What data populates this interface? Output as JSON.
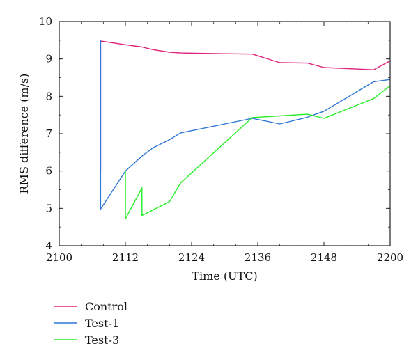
{
  "chart_data": {
    "type": "line",
    "xlabel": "Time (UTC)",
    "ylabel": "RMS difference (m/s)",
    "xlim": [
      2100,
      2200
    ],
    "ylim": [
      4,
      10
    ],
    "xticks": [
      "2100",
      "2112",
      "2124",
      "2136",
      "2148",
      "2200"
    ],
    "yticks": [
      "4",
      "5",
      "6",
      "7",
      "8",
      "9",
      "10"
    ],
    "legend_position": "bottom-left",
    "series": [
      {
        "name": "Control",
        "color": "#e0207a",
        "points": [
          [
            2107.5,
            6.0
          ],
          [
            2107.5,
            9.48
          ],
          [
            2112,
            9.38
          ],
          [
            2115,
            9.32
          ],
          [
            2117,
            9.25
          ],
          [
            2120,
            9.18
          ],
          [
            2122,
            9.16
          ],
          [
            2130,
            9.14
          ],
          [
            2135,
            9.13
          ],
          [
            2140,
            8.9
          ],
          [
            2145,
            8.89
          ],
          [
            2148,
            8.77
          ],
          [
            2157,
            8.71
          ],
          [
            2200,
            8.95
          ]
        ]
      },
      {
        "name": "Test-1",
        "color": "#2f77d4",
        "points": [
          [
            2107.5,
            6.0
          ],
          [
            2107.5,
            9.48
          ],
          [
            2107.5,
            4.98
          ],
          [
            2112,
            6.0
          ],
          [
            2115,
            6.4
          ],
          [
            2117,
            6.62
          ],
          [
            2120,
            6.84
          ],
          [
            2122,
            7.02
          ],
          [
            2135,
            7.41
          ],
          [
            2140,
            7.26
          ],
          [
            2145,
            7.44
          ],
          [
            2148,
            7.6
          ],
          [
            2157,
            8.39
          ],
          [
            2200,
            8.45
          ]
        ]
      },
      {
        "name": "Test-3",
        "color": "#22ee22",
        "points": [
          [
            2112,
            6.0
          ],
          [
            2112,
            4.72
          ],
          [
            2115,
            5.55
          ],
          [
            2115,
            4.81
          ],
          [
            2120,
            5.18
          ],
          [
            2122,
            5.68
          ],
          [
            2135,
            7.43
          ],
          [
            2145,
            7.52
          ],
          [
            2148,
            7.41
          ],
          [
            2157,
            7.94
          ],
          [
            2200,
            8.28
          ]
        ]
      }
    ]
  }
}
